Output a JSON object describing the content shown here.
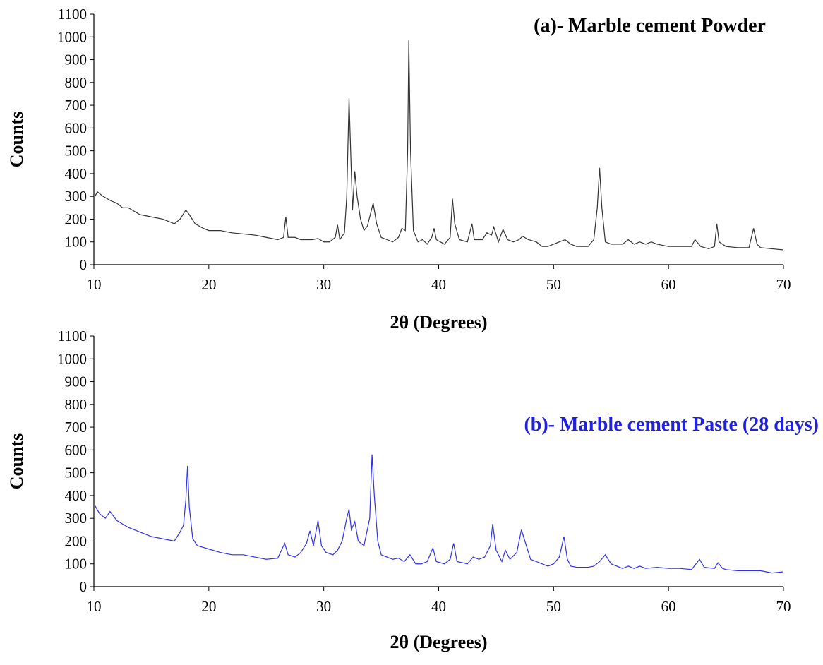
{
  "chart_data": [
    {
      "type": "line",
      "title": "(a)- Marble cement Powder",
      "xlabel": "2θ (Degrees)",
      "ylabel": "Counts",
      "x": [
        10.1,
        10.3,
        10.8,
        11.5,
        12,
        12.5,
        13,
        14,
        15,
        16,
        16.5,
        17,
        17.5,
        18,
        18.3,
        18.8,
        19.5,
        20,
        21,
        22,
        23,
        24,
        25,
        26,
        26.5,
        26.7,
        26.9,
        27.5,
        28,
        29,
        29.5,
        30,
        30.5,
        31,
        31.2,
        31.4,
        31.8,
        32.0,
        32.2,
        32.4,
        32.5,
        32.7,
        32.9,
        33.2,
        33.5,
        33.8,
        34.1,
        34.3,
        34.6,
        35,
        35.5,
        36,
        36.5,
        36.8,
        37.1,
        37.3,
        37.4,
        37.55,
        37.8,
        38.2,
        38.6,
        39,
        39.4,
        39.6,
        39.8,
        40.5,
        41,
        41.2,
        41.4,
        41.8,
        42.5,
        42.9,
        43.1,
        43.8,
        44.2,
        44.6,
        44.8,
        45.2,
        45.6,
        46,
        46.5,
        47,
        47.3,
        47.8,
        48.5,
        49,
        49.5,
        50,
        50.5,
        51,
        51.5,
        52,
        53,
        53.5,
        53.8,
        54,
        54.2,
        54.5,
        55,
        56,
        56.5,
        57,
        57.5,
        58,
        58.5,
        59,
        60,
        61,
        61.5,
        62,
        62.3,
        62.8,
        63.5,
        64,
        64.2,
        64.4,
        65,
        66,
        67,
        67.4,
        67.7,
        68,
        69,
        70
      ],
      "series": [
        {
          "color": "#333333",
          "values": [
            300,
            320,
            300,
            280,
            270,
            250,
            250,
            220,
            210,
            200,
            190,
            180,
            200,
            240,
            220,
            180,
            160,
            150,
            150,
            140,
            135,
            130,
            120,
            110,
            120,
            210,
            120,
            120,
            110,
            110,
            115,
            100,
            100,
            120,
            175,
            110,
            140,
            300,
            730,
            400,
            240,
            410,
            300,
            200,
            150,
            170,
            230,
            270,
            180,
            120,
            110,
            100,
            120,
            160,
            150,
            500,
            985,
            500,
            150,
            100,
            110,
            90,
            120,
            160,
            110,
            90,
            120,
            290,
            180,
            110,
            100,
            180,
            110,
            110,
            140,
            130,
            165,
            100,
            155,
            110,
            100,
            110,
            125,
            110,
            100,
            80,
            80,
            90,
            100,
            110,
            90,
            80,
            80,
            110,
            250,
            425,
            250,
            100,
            90,
            90,
            110,
            90,
            100,
            90,
            100,
            90,
            80,
            80,
            80,
            80,
            110,
            80,
            70,
            80,
            180,
            100,
            80,
            75,
            75,
            160,
            90,
            75,
            70,
            65
          ]
        }
      ],
      "xlim": [
        10,
        70
      ],
      "xticks": [
        10,
        20,
        30,
        40,
        50,
        60,
        70
      ],
      "ylim": [
        0,
        1100
      ],
      "yticks": [
        0,
        100,
        200,
        300,
        400,
        500,
        600,
        700,
        800,
        900,
        1000,
        1100
      ]
    },
    {
      "type": "line",
      "title": "(b)- Marble cement Paste (28 days)",
      "title_color": "#2020e0",
      "xlabel": "2θ (Degrees)",
      "ylabel": "Counts",
      "x": [
        10.1,
        10.5,
        11,
        11.4,
        12,
        13,
        14,
        15,
        16,
        17,
        17.5,
        17.8,
        18.0,
        18.15,
        18.3,
        18.6,
        19,
        20,
        21,
        22,
        23,
        24,
        25,
        26,
        26.6,
        26.9,
        27.5,
        28,
        28.5,
        28.8,
        29.1,
        29.5,
        29.8,
        30.2,
        30.8,
        31.2,
        31.6,
        32.0,
        32.2,
        32.4,
        32.7,
        33,
        33.5,
        34,
        34.2,
        34.4,
        34.7,
        35,
        35.5,
        36,
        36.5,
        37,
        37.5,
        38,
        38.5,
        39,
        39.5,
        39.8,
        40.5,
        41,
        41.3,
        41.6,
        42.5,
        43,
        43.5,
        44,
        44.5,
        44.7,
        45,
        45.5,
        45.8,
        46.2,
        46.8,
        47.2,
        47.5,
        48,
        48.5,
        49,
        49.5,
        50,
        50.5,
        50.9,
        51.2,
        51.5,
        52,
        53,
        53.5,
        54,
        54.5,
        55,
        55.5,
        56,
        56.5,
        57,
        57.5,
        58,
        59,
        60,
        61,
        62,
        62.7,
        63.1,
        64,
        64.3,
        64.7,
        65,
        66,
        67,
        68,
        69,
        70
      ],
      "series": [
        {
          "color": "#3030ee",
          "values": [
            355,
            320,
            300,
            330,
            290,
            260,
            240,
            220,
            210,
            200,
            240,
            270,
            380,
            530,
            350,
            210,
            180,
            165,
            150,
            140,
            140,
            130,
            120,
            125,
            190,
            140,
            130,
            150,
            190,
            245,
            180,
            290,
            180,
            150,
            140,
            160,
            200,
            300,
            340,
            250,
            285,
            200,
            180,
            300,
            580,
            400,
            200,
            140,
            130,
            120,
            125,
            110,
            140,
            100,
            100,
            110,
            170,
            110,
            100,
            120,
            190,
            110,
            100,
            130,
            120,
            130,
            180,
            275,
            160,
            110,
            160,
            120,
            150,
            250,
            200,
            120,
            110,
            100,
            90,
            100,
            130,
            220,
            120,
            90,
            85,
            85,
            90,
            110,
            140,
            100,
            90,
            80,
            90,
            80,
            90,
            80,
            85,
            80,
            80,
            75,
            120,
            85,
            80,
            105,
            80,
            75,
            70,
            70,
            70,
            60,
            65
          ]
        }
      ],
      "xlim": [
        10,
        70
      ],
      "xticks": [
        10,
        20,
        30,
        40,
        50,
        60,
        70
      ],
      "ylim": [
        0,
        1100
      ],
      "yticks": [
        0,
        100,
        200,
        300,
        400,
        500,
        600,
        700,
        800,
        900,
        1000,
        1100
      ]
    }
  ]
}
